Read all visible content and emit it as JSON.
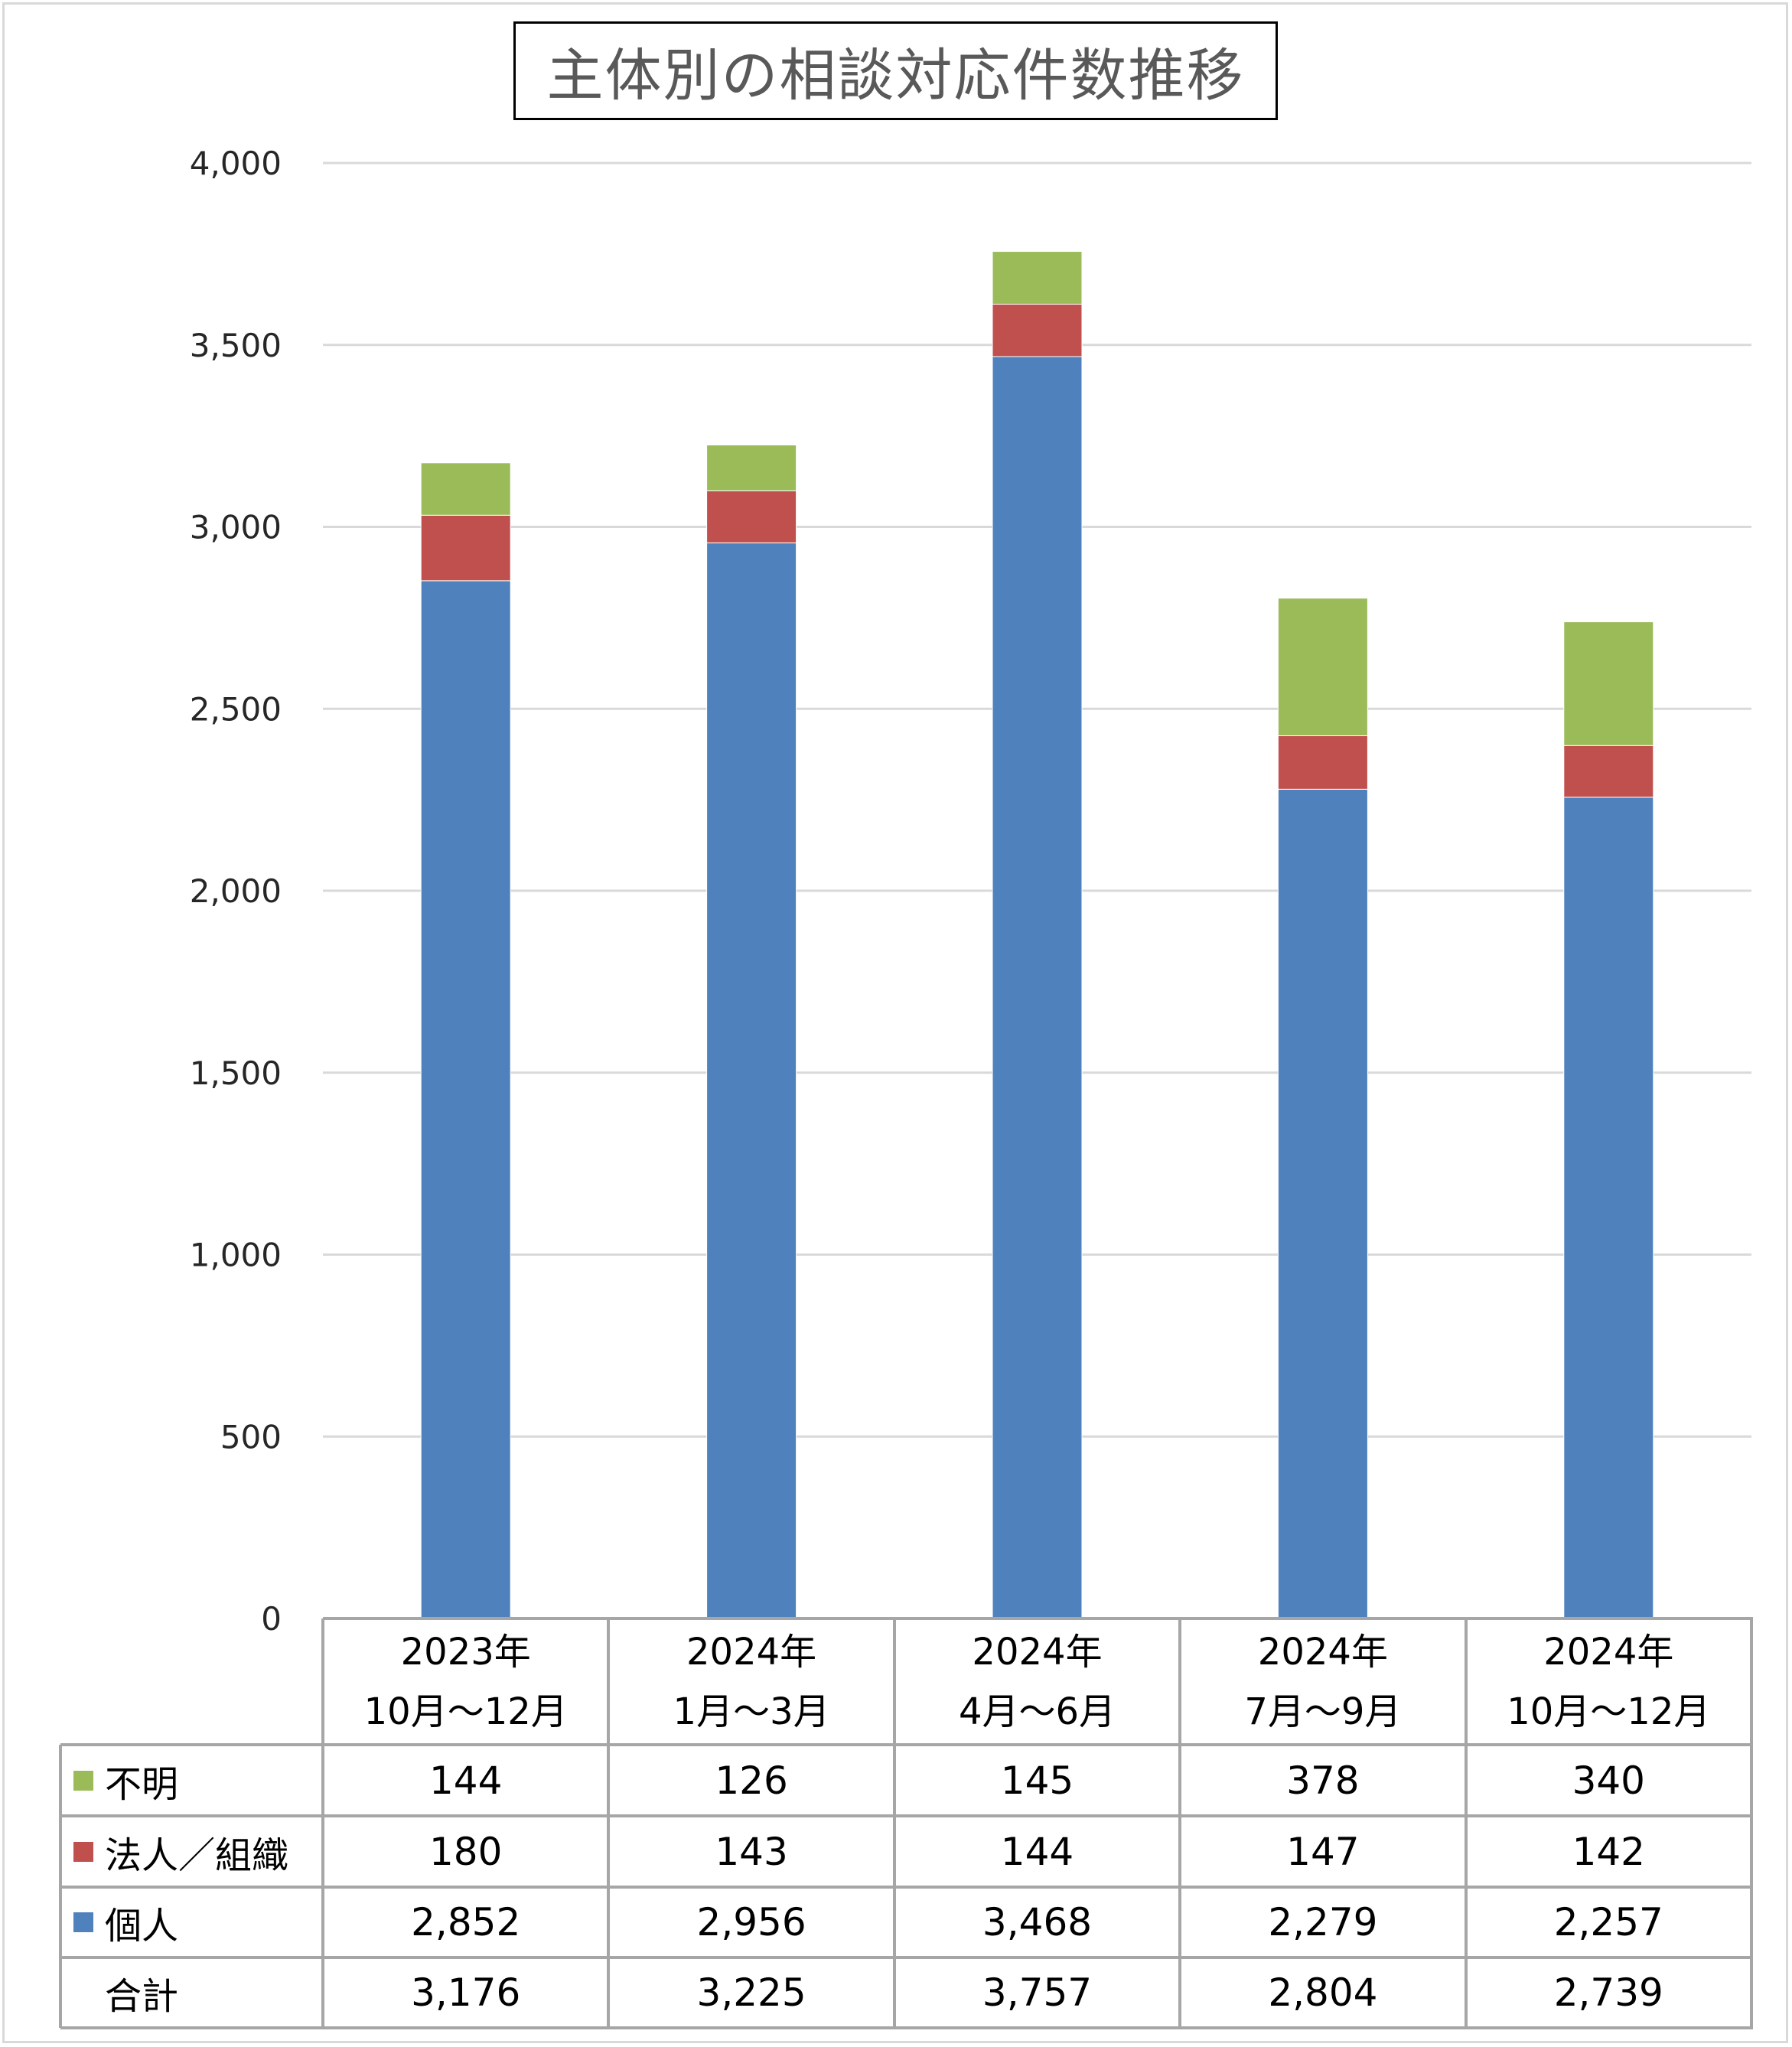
{
  "title": "主体別の相談対応件数推移",
  "chart_data": {
    "type": "bar",
    "stacked": true,
    "title": "主体別の相談対応件数推移",
    "xlabel": "",
    "ylabel": "",
    "ylim": [
      0,
      4000
    ],
    "yticks": [
      0,
      500,
      1000,
      1500,
      2000,
      2500,
      3000,
      3500,
      4000
    ],
    "ytick_labels": [
      "0",
      "500",
      "1,000",
      "1,500",
      "2,000",
      "2,500",
      "3,000",
      "3,500",
      "4,000"
    ],
    "grid": true,
    "legend_position": "data-table-left",
    "categories": [
      {
        "year": "2023年",
        "period": "10月～12月"
      },
      {
        "year": "2024年",
        "period": "1月～3月"
      },
      {
        "year": "2024年",
        "period": "4月～6月"
      },
      {
        "year": "2024年",
        "period": "7月～9月"
      },
      {
        "year": "2024年",
        "period": "10月～12月"
      }
    ],
    "series": [
      {
        "name": "個人",
        "color": "#4F81BD",
        "values": [
          2852,
          2956,
          3468,
          2279,
          2257
        ]
      },
      {
        "name": "法人／組織",
        "color": "#C0504D",
        "values": [
          180,
          143,
          144,
          147,
          142
        ]
      },
      {
        "name": "不明",
        "color": "#9BBB59",
        "values": [
          144,
          126,
          145,
          378,
          340
        ]
      }
    ],
    "table_rows": [
      {
        "label": "不明",
        "series_index": 2,
        "values": [
          "144",
          "126",
          "145",
          "378",
          "340"
        ]
      },
      {
        "label": "法人／組織",
        "series_index": 1,
        "values": [
          "180",
          "143",
          "144",
          "147",
          "142"
        ]
      },
      {
        "label": "個人",
        "series_index": 0,
        "values": [
          "2,852",
          "2,956",
          "3,468",
          "2,279",
          "2,257"
        ]
      },
      {
        "label": "合計",
        "series_index": null,
        "values": [
          "3,176",
          "3,225",
          "3,757",
          "2,804",
          "2,739"
        ]
      }
    ]
  }
}
